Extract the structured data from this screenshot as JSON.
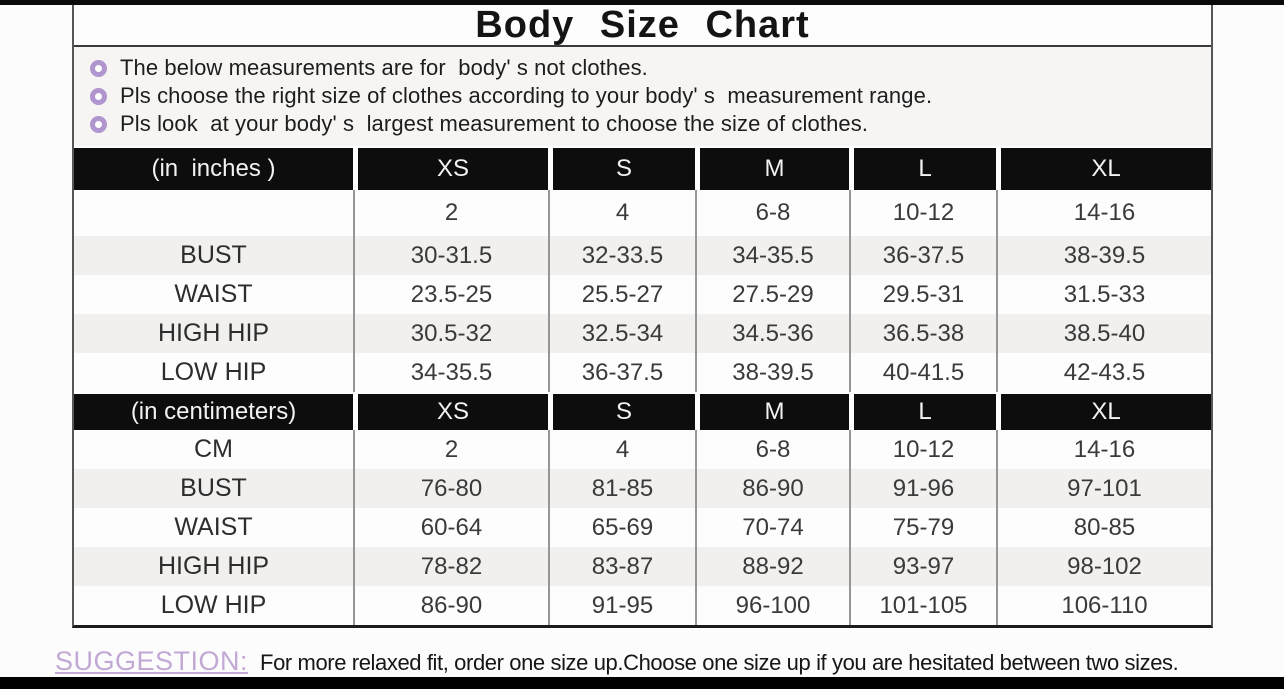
{
  "chart_data": {
    "type": "table",
    "title": "Body Size Chart",
    "notes": [
      "The below measurements are for  body' s not clothes.",
      "Pls choose the right size of clothes according to your body' s  measurement range.",
      "Pls look  at your body' s  largest measurement to choose the size of clothes."
    ],
    "tables": [
      {
        "unit_label": "(in  inches )",
        "size_columns": [
          "XS",
          "S",
          "M",
          "L",
          "XL"
        ],
        "rows": [
          {
            "label": "",
            "values": [
              "2",
              "4",
              "6-8",
              "10-12",
              "14-16"
            ]
          },
          {
            "label": "BUST",
            "values": [
              "30-31.5",
              "32-33.5",
              "34-35.5",
              "36-37.5",
              "38-39.5"
            ]
          },
          {
            "label": "WAIST",
            "values": [
              "23.5-25",
              "25.5-27",
              "27.5-29",
              "29.5-31",
              "31.5-33"
            ]
          },
          {
            "label": "HIGH HIP",
            "values": [
              "30.5-32",
              "32.5-34",
              "34.5-36",
              "36.5-38",
              "38.5-40"
            ]
          },
          {
            "label": "LOW HIP",
            "values": [
              "34-35.5",
              "36-37.5",
              "38-39.5",
              "40-41.5",
              "42-43.5"
            ]
          }
        ]
      },
      {
        "unit_label": "(in centimeters)",
        "size_columns": [
          "XS",
          "S",
          "M",
          "L",
          "XL"
        ],
        "rows": [
          {
            "label": "CM",
            "values": [
              "2",
              "4",
              "6-8",
              "10-12",
              "14-16"
            ]
          },
          {
            "label": "BUST",
            "values": [
              "76-80",
              "81-85",
              "86-90",
              "91-96",
              "97-101"
            ]
          },
          {
            "label": "WAIST",
            "values": [
              "60-64",
              "65-69",
              "70-74",
              "75-79",
              "80-85"
            ]
          },
          {
            "label": "HIGH HIP",
            "values": [
              "78-82",
              "83-87",
              "88-92",
              "93-97",
              "98-102"
            ]
          },
          {
            "label": "LOW HIP",
            "values": [
              "86-90",
              "91-95",
              "96-100",
              "101-105",
              "106-110"
            ]
          }
        ]
      }
    ],
    "suggestion": {
      "label": "SUGGESTION:",
      "text": "For more relaxed fit, order one size up.Choose one size up if you are hesitated between two sizes."
    },
    "colors": {
      "header_bg": "#0d0d0d",
      "header_text": "#f2f2f2",
      "row_alt_bg": "#f1f0ee",
      "notes_bg": "#f6f5f3",
      "bullet_purple": "#b095ce",
      "suggestion_purple": "#c2a8d5",
      "text_dark": "#1d1d1d",
      "bar_black": "#000000"
    }
  }
}
